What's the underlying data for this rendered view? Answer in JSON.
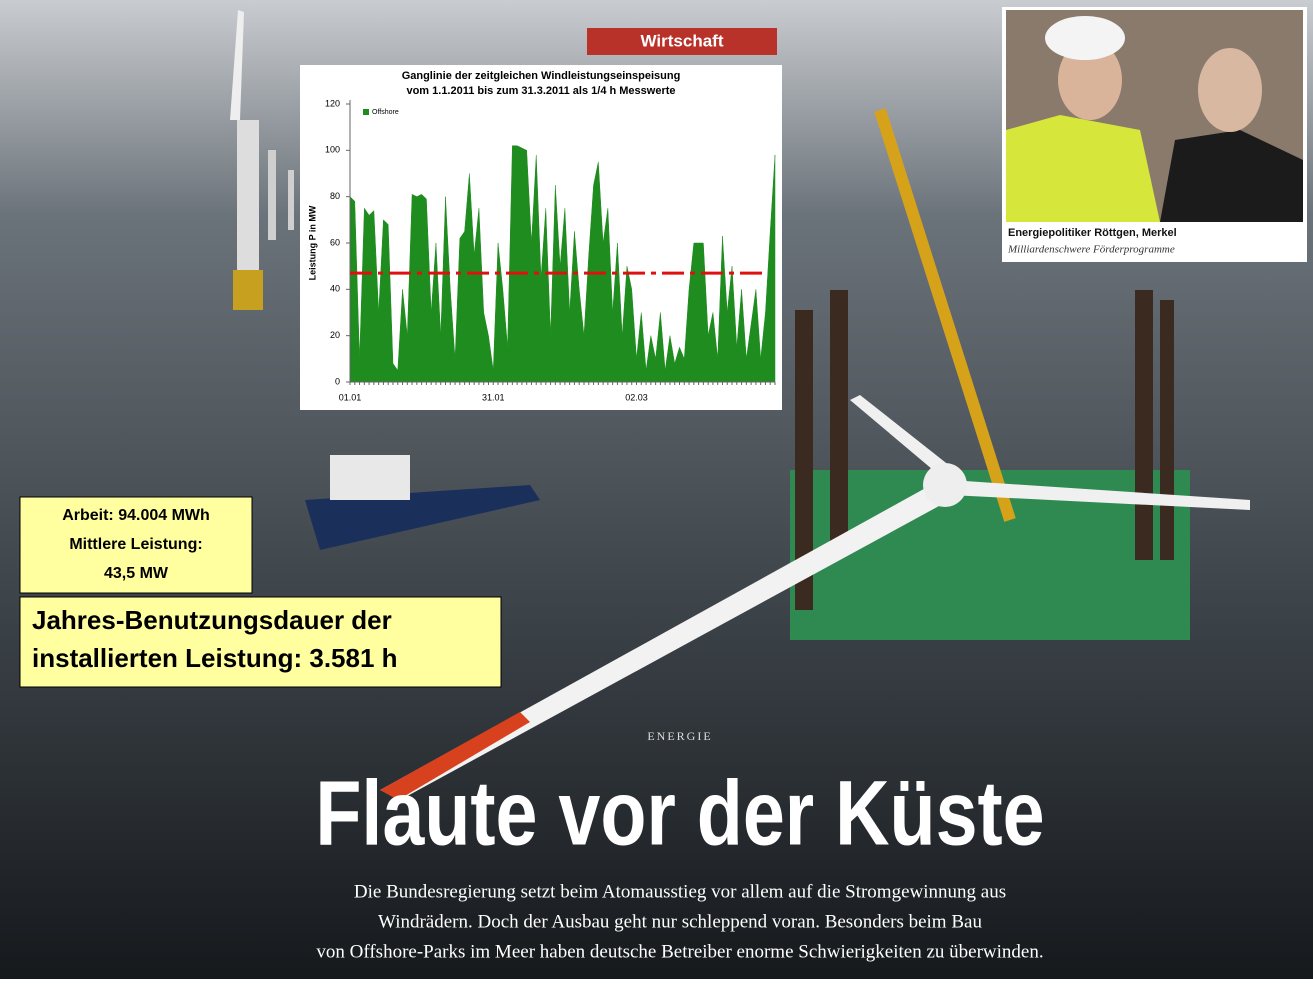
{
  "section": "Wirtschaft",
  "photo_caption": {
    "title": "Energiepolitiker Röttgen, Merkel",
    "subtitle": "Milliardenschwere Förderprogramme"
  },
  "info_box": {
    "lines": [
      "Arbeit: 94.004 MWh",
      "Mittlere Leistung:",
      "43,5 MW"
    ]
  },
  "highlight_box": {
    "lines": [
      "Jahres-Benutzungsdauer der",
      "installierten Leistung: 3.581 h"
    ]
  },
  "article": {
    "kicker": "ENERGIE",
    "headline": "Flaute vor der Küste",
    "lead": [
      "Die Bundesregierung setzt beim Atomausstieg vor allem auf die Stromgewinnung aus",
      "Windrädern. Doch der Ausbau geht nur schleppend voran. Besonders beim Bau",
      "von Offshore-Parks im Meer haben deutsche Betreiber enorme Schwierigkeiten zu überwinden."
    ]
  },
  "chart_data": {
    "type": "area",
    "title": [
      "Ganglinie der zeitgleichen Windleistungseinspeisung",
      "vom 1.1.2011 bis zum 31.3.2011 als 1/4 h Messwerte"
    ],
    "ylabel": "Leistung P in MW",
    "categories": [
      "01.01",
      null,
      null,
      null,
      null,
      null,
      null,
      null,
      null,
      null,
      null,
      null,
      null,
      null,
      null,
      null,
      null,
      null,
      null,
      null,
      null,
      null,
      null,
      null,
      null,
      null,
      null,
      null,
      null,
      null,
      "31.01",
      null,
      null,
      null,
      null,
      null,
      null,
      null,
      null,
      null,
      null,
      null,
      null,
      null,
      null,
      null,
      null,
      null,
      null,
      null,
      null,
      null,
      null,
      null,
      null,
      null,
      null,
      null,
      null,
      null,
      "02.03",
      null,
      null,
      null,
      null,
      null,
      null,
      null,
      null,
      null,
      null,
      null,
      null,
      null,
      null,
      null,
      null,
      null,
      null,
      null,
      null,
      null,
      null,
      null,
      null,
      null,
      null,
      null,
      null,
      null
    ],
    "series": [
      {
        "name": "Offshore",
        "color": "#1e8c1e",
        "values": [
          80,
          78,
          10,
          75,
          72,
          74,
          30,
          70,
          68,
          8,
          5,
          40,
          20,
          81,
          80,
          81,
          79,
          30,
          60,
          20,
          80,
          40,
          10,
          62,
          65,
          90,
          55,
          75,
          30,
          20,
          5,
          60,
          40,
          15,
          102,
          102,
          101,
          100,
          60,
          98,
          45,
          75,
          20,
          85,
          50,
          75,
          30,
          65,
          40,
          20,
          55,
          85,
          95,
          60,
          75,
          30,
          60,
          20,
          50,
          40,
          10,
          30,
          5,
          20,
          10,
          30,
          5,
          20,
          8,
          15,
          10,
          40,
          60,
          60,
          60,
          20,
          30,
          10,
          63,
          30,
          50,
          15,
          40,
          10,
          25,
          40,
          10,
          30,
          65,
          98
        ]
      }
    ],
    "reference_line": {
      "value": 47,
      "color": "#e01010"
    },
    "ylim": [
      0,
      120
    ],
    "yticks": [
      0,
      20,
      40,
      60,
      80,
      100,
      120
    ],
    "grid": false,
    "legend": "top-left"
  }
}
